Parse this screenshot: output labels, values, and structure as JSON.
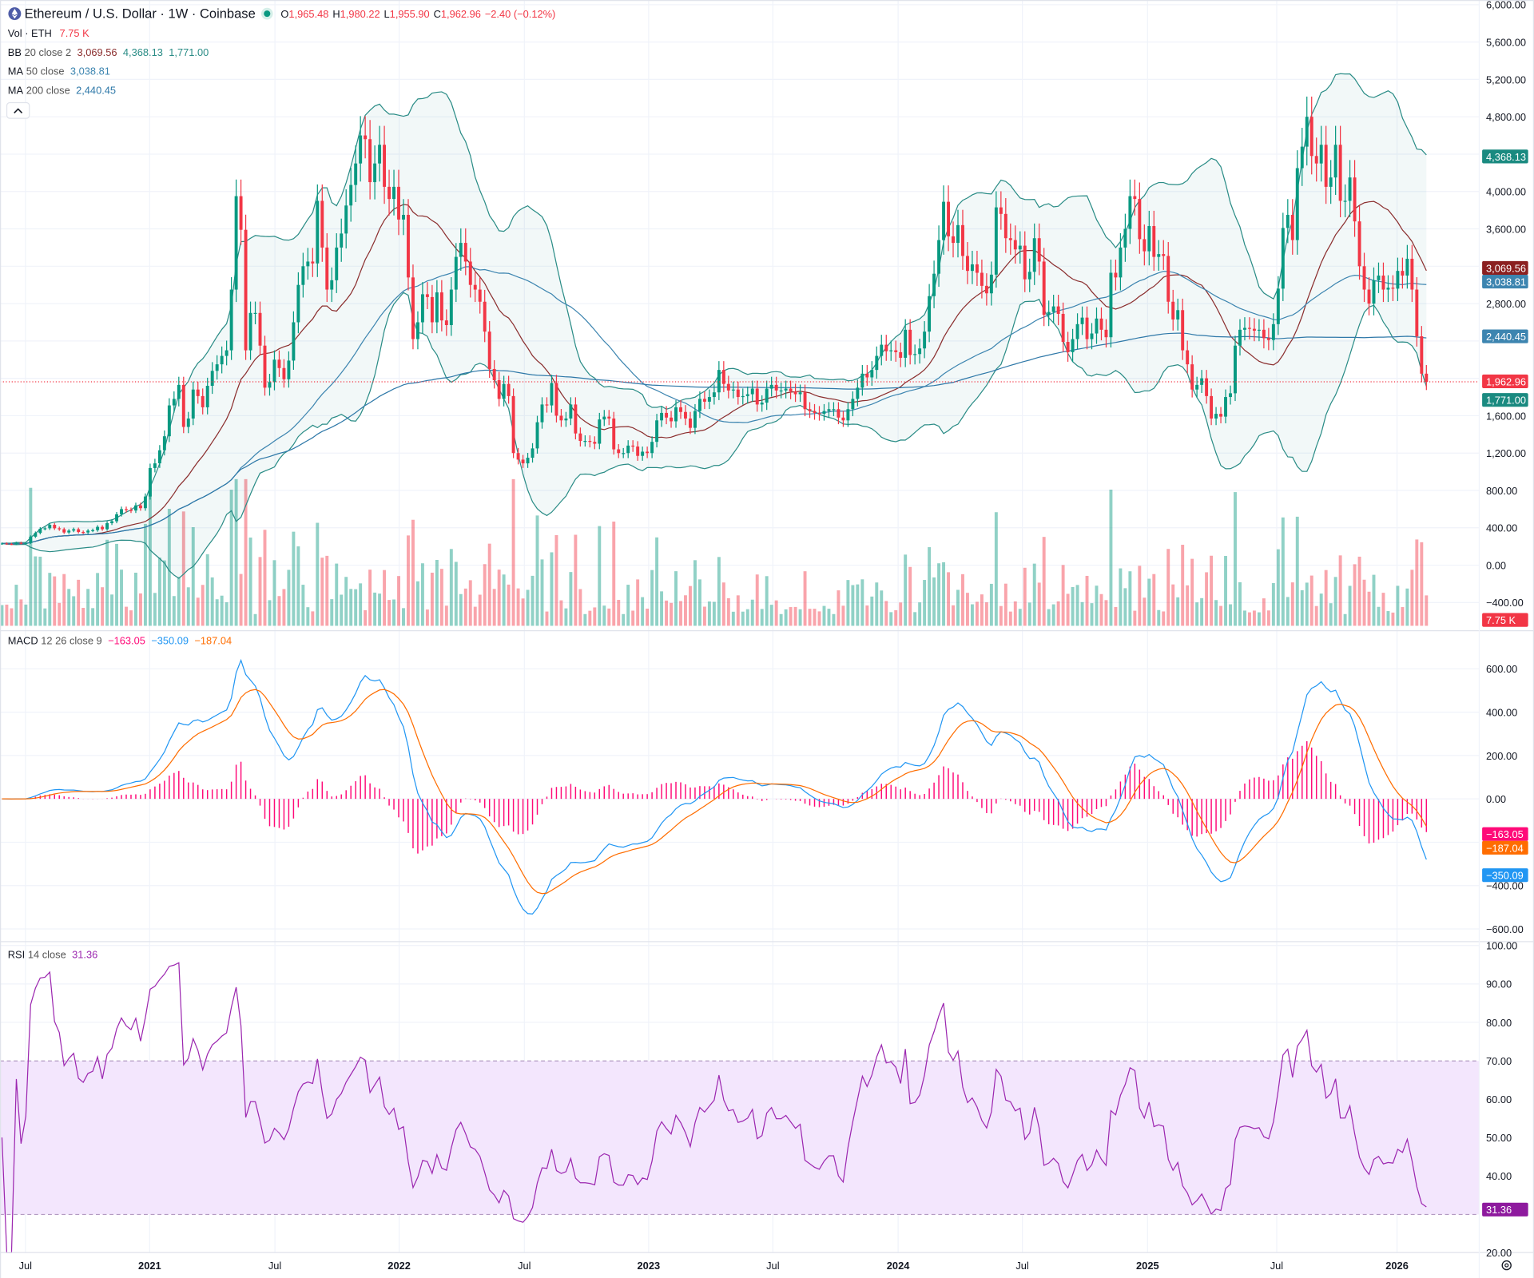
{
  "header": {
    "symbol_icon": "ethereum-logo-icon",
    "title": "Ethereum / U.S. Dollar · 1W · Coinbase",
    "market_status_icon": "market-open-dot-icon",
    "ohlc": {
      "o_label": "O",
      "o": "1,965.48",
      "h_label": "H",
      "h": "1,980.22",
      "l_label": "L",
      "l": "1,955.90",
      "c_label": "C",
      "c": "1,962.96",
      "change": "−2.40 (−0.12%)"
    }
  },
  "legends": {
    "vol": {
      "name": "Vol · ETH",
      "value": "7.75 K"
    },
    "bb": {
      "name": "BB",
      "params": "20 close 2",
      "basis": "3,069.56",
      "upper": "4,368.13",
      "lower": "1,771.00"
    },
    "ma50": {
      "name": "MA",
      "params": "50 close",
      "value": "3,038.81"
    },
    "ma200": {
      "name": "MA",
      "params": "200 close",
      "value": "2,440.45"
    },
    "collapse_icon": "chevron-up-icon",
    "macd": {
      "name": "MACD",
      "params": "12 26 close 9",
      "hist": "−163.05",
      "macd": "−350.09",
      "signal": "−187.04"
    },
    "rsi": {
      "name": "RSI",
      "params": "14 close",
      "value": "31.36"
    }
  },
  "price_axis": [
    "6,000.00",
    "5,600.00",
    "5,200.00",
    "4,800.00",
    "4,000.00",
    "3,600.00",
    "2,800.00",
    "1,600.00",
    "1,200.00",
    "800.00",
    "400.00",
    "0.00",
    "−400.00"
  ],
  "price_badges": {
    "upper": "4,368.13",
    "basis": "3,069.56",
    "ma50": "3,038.81",
    "ma200": "2,440.45",
    "last": "1,962.96",
    "lower": "1,771.00",
    "vol": "7.75 K"
  },
  "macd_axis": [
    "600.00",
    "400.00",
    "200.00",
    "0.00",
    "−400.00",
    "−600.00"
  ],
  "macd_badges": {
    "hist": "−163.05",
    "signal": "−187.04",
    "macd": "−350.09"
  },
  "rsi_axis": [
    "100.00",
    "90.00",
    "80.00",
    "70.00",
    "60.00",
    "50.00",
    "40.00",
    "20.00"
  ],
  "rsi_badge": "31.36",
  "time_axis": [
    {
      "label": "Jul",
      "bold": false
    },
    {
      "label": "2021",
      "bold": true
    },
    {
      "label": "Jul",
      "bold": false
    },
    {
      "label": "2022",
      "bold": true
    },
    {
      "label": "Jul",
      "bold": false
    },
    {
      "label": "2023",
      "bold": true
    },
    {
      "label": "Jul",
      "bold": false
    },
    {
      "label": "2024",
      "bold": true
    },
    {
      "label": "Jul",
      "bold": false
    },
    {
      "label": "2025",
      "bold": true
    },
    {
      "label": "Jul",
      "bold": false
    },
    {
      "label": "2026",
      "bold": true
    }
  ],
  "settings_icon": "gear-icon",
  "colors": {
    "up": "#089981",
    "down": "#f23645",
    "bb_basis": "#8b2e2e",
    "bb_band": "#2a8c86",
    "ma50": "#3d85b0",
    "ma200": "#2e78a8",
    "macd": "#2196f3",
    "signal": "#ff6d00",
    "hist": "#ff0a78",
    "rsi": "#9c27b0"
  },
  "chart_data": {
    "type": "candlestick",
    "interval": "1W",
    "ylim": [
      -400,
      6000
    ],
    "x_range": [
      "2020-06",
      "2026-02"
    ],
    "closes": [
      233,
      228,
      225,
      240,
      232,
      237,
      305,
      345,
      390,
      395,
      432,
      395,
      385,
      350,
      370,
      385,
      355,
      350,
      370,
      375,
      410,
      385,
      450,
      470,
      545,
      600,
      590,
      585,
      640,
      610,
      735,
      1040,
      1090,
      1230,
      1380,
      1710,
      1780,
      1930,
      1480,
      1570,
      1880,
      1810,
      1690,
      1920,
      2080,
      2150,
      2240,
      2300,
      2950,
      3950,
      3590,
      2300,
      2700,
      2700,
      2350,
      1900,
      1960,
      2200,
      2110,
      1990,
      2190,
      2600,
      3000,
      3200,
      3250,
      3230,
      3900,
      3400,
      2950,
      3050,
      3400,
      3550,
      3850,
      4070,
      4300,
      4600,
      4560,
      4100,
      4300,
      4500,
      4050,
      3920,
      4050,
      3700,
      3750,
      3080,
      2420,
      2600,
      2900,
      2870,
      2600,
      2920,
      2620,
      2570,
      2950,
      3300,
      3450,
      3250,
      3000,
      2950,
      2820,
      2500,
      2100,
      1980,
      1780,
      1940,
      1810,
      1200,
      1130,
      1090,
      1150,
      1250,
      1530,
      1720,
      1710,
      1950,
      1600,
      1550,
      1570,
      1720,
      1410,
      1330,
      1330,
      1320,
      1300,
      1560,
      1590,
      1570,
      1240,
      1200,
      1200,
      1280,
      1270,
      1170,
      1215,
      1200,
      1320,
      1550,
      1630,
      1580,
      1540,
      1690,
      1640,
      1570,
      1470,
      1650,
      1780,
      1750,
      1800,
      1850,
      2090,
      1940,
      1870,
      1880,
      1800,
      1810,
      1830,
      1890,
      1720,
      1740,
      1890,
      1930,
      1870,
      1870,
      1890,
      1860,
      1830,
      1850,
      1670,
      1650,
      1630,
      1620,
      1650,
      1670,
      1670,
      1580,
      1550,
      1670,
      1780,
      1900,
      2050,
      2010,
      2090,
      2240,
      2360,
      2290,
      2300,
      2280,
      2220,
      2520,
      2250,
      2260,
      2320,
      2500,
      2880,
      3120,
      3480,
      3890,
      3520,
      3450,
      3640,
      3310,
      3150,
      3220,
      3130,
      2990,
      2910,
      3110,
      3830,
      3760,
      3500,
      3480,
      3380,
      3420,
      3060,
      3140,
      3500,
      3250,
      2680,
      2710,
      2770,
      2690,
      2390,
      2280,
      2420,
      2580,
      2650,
      2420,
      2480,
      2640,
      2520,
      2440,
      3130,
      3080,
      3400,
      3600,
      3950,
      3920,
      3490,
      3360,
      3630,
      3300,
      3330,
      3310,
      2820,
      2630,
      2730,
      2300,
      2150,
      1880,
      1930,
      2000,
      1810,
      1570,
      1620,
      1590,
      1800,
      1840,
      2350,
      2520,
      2540,
      2530,
      2510,
      2520,
      2430,
      2410,
      2580,
      2960,
      3610,
      3750,
      3480,
      4250,
      4480,
      4800,
      4380,
      4300,
      4500,
      4050,
      4150,
      4500,
      3900,
      3900,
      4150,
      3680,
      3200,
      2950,
      2800,
      3050,
      3100,
      2950,
      2970,
      2960,
      3150,
      3100,
      3280,
      2950,
      2450,
      2050,
      1962.96
    ],
    "indicators": {
      "bollinger": {
        "length": 20,
        "mult": 2,
        "last_basis": 3069.56,
        "last_upper": 4368.13,
        "last_lower": 1771.0
      },
      "ma50_last": 3038.81,
      "ma200_last": 2440.45,
      "macd": {
        "fast": 12,
        "slow": 26,
        "signal": 9,
        "last_macd": -350.09,
        "last_signal": -187.04,
        "last_hist": -163.05,
        "ylim": [
          -600,
          600
        ]
      },
      "rsi": {
        "length": 14,
        "last": 31.36,
        "upper_band": 70,
        "lower_band": 30,
        "ylim": [
          20,
          100
        ]
      }
    }
  }
}
